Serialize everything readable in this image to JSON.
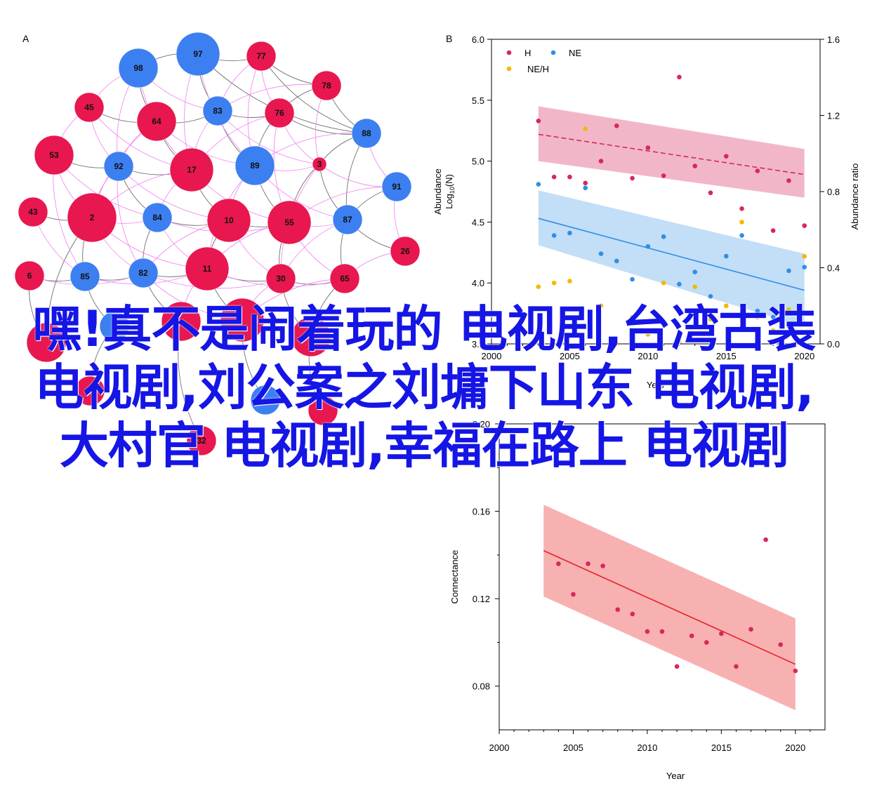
{
  "headline": "嘿!真不是闹着玩的 电视剧,台湾古装电视剧,刘公案之刘墉下山东 电视剧,大村官 电视剧,幸福在路上 电视剧",
  "colors": {
    "node_red": "#e8174f",
    "node_blue": "#3c7ff0",
    "edge_pink": "#f080f0",
    "edge_dark": "#555555",
    "series_H": "#d6285a",
    "series_NE": "#2f8fe6",
    "series_NEH": "#f5b800",
    "band_H": "#eeaac0",
    "band_NE": "#b8d8f6",
    "band_conn": "#f7a8a8",
    "line_conn": "#e8202a"
  },
  "network": {
    "panel_label": "A",
    "nodes": [
      {
        "id": "97",
        "group": "blue",
        "size": "large"
      },
      {
        "id": "98",
        "group": "blue",
        "size": "medium"
      },
      {
        "id": "77",
        "group": "red",
        "size": "small"
      },
      {
        "id": "78",
        "group": "red",
        "size": "small"
      },
      {
        "id": "45",
        "group": "red",
        "size": "small"
      },
      {
        "id": "64",
        "group": "red",
        "size": "medium"
      },
      {
        "id": "83",
        "group": "blue",
        "size": "small"
      },
      {
        "id": "76",
        "group": "red",
        "size": "small"
      },
      {
        "id": "88",
        "group": "blue",
        "size": "small"
      },
      {
        "id": "53",
        "group": "red",
        "size": "medium"
      },
      {
        "id": "92",
        "group": "blue",
        "size": "small"
      },
      {
        "id": "17",
        "group": "red",
        "size": "large"
      },
      {
        "id": "89",
        "group": "blue",
        "size": "medium"
      },
      {
        "id": "3",
        "group": "red",
        "size": "tiny"
      },
      {
        "id": "91",
        "group": "blue",
        "size": "small"
      },
      {
        "id": "43",
        "group": "red",
        "size": "small"
      },
      {
        "id": "2",
        "group": "red",
        "size": "xlarge"
      },
      {
        "id": "84",
        "group": "blue",
        "size": "small"
      },
      {
        "id": "10",
        "group": "red",
        "size": "large"
      },
      {
        "id": "55",
        "group": "red",
        "size": "large"
      },
      {
        "id": "87",
        "group": "blue",
        "size": "small"
      },
      {
        "id": "26",
        "group": "red",
        "size": "small"
      },
      {
        "id": "6",
        "group": "red",
        "size": "small"
      },
      {
        "id": "85",
        "group": "blue",
        "size": "small"
      },
      {
        "id": "82",
        "group": "blue",
        "size": "small"
      },
      {
        "id": "11",
        "group": "red",
        "size": "large"
      },
      {
        "id": "30",
        "group": "red",
        "size": "small"
      },
      {
        "id": "65",
        "group": "red",
        "size": "small"
      },
      {
        "id": "",
        "group": "red",
        "size": "medium"
      },
      {
        "id": "",
        "group": "red",
        "size": "large"
      },
      {
        "id": "",
        "group": "red",
        "size": "medium"
      },
      {
        "id": "",
        "group": "red",
        "size": "medium"
      },
      {
        "id": "",
        "group": "blue",
        "size": "small"
      },
      {
        "id": "",
        "group": "blue",
        "size": "small"
      },
      {
        "id": "32",
        "group": "red",
        "size": "small"
      },
      {
        "id": "",
        "group": "red",
        "size": "small"
      },
      {
        "id": "",
        "group": "red",
        "size": "small"
      }
    ]
  },
  "chart_data": [
    {
      "panel_label": "B",
      "type": "scatter",
      "xlabel": "Year",
      "ylabel": "Abundance",
      "ylabel_line2_prefix": "Log",
      "ylabel_line2_sub": "10",
      "ylabel_line2_suffix": "(N)",
      "y2label": "Abundance ratio",
      "xlim": [
        2000,
        2021
      ],
      "ylim": [
        3.5,
        6.0
      ],
      "y2lim": [
        0.0,
        1.6
      ],
      "xticks": [
        "2000",
        "2005",
        "2010",
        "2015",
        "2020"
      ],
      "yticks": [
        "3.5",
        "4.0",
        "4.5",
        "5.0",
        "5.5",
        "6.0"
      ],
      "y2ticks": [
        "0.0",
        "0.4",
        "0.8",
        "1.2",
        "1.6"
      ],
      "legend": {
        "position": "top-left",
        "items": [
          "H",
          "NE",
          "NE/H"
        ]
      },
      "series": [
        {
          "name": "H",
          "axis": "left",
          "x": [
            2003,
            2004,
            2005,
            2006,
            2007,
            2008,
            2009,
            2010,
            2011,
            2012,
            2013,
            2014,
            2015,
            2016,
            2017,
            2018,
            2019,
            2020
          ],
          "y": [
            5.33,
            4.87,
            4.87,
            4.82,
            5.0,
            5.29,
            4.86,
            5.11,
            4.88,
            5.69,
            4.96,
            4.74,
            5.04,
            4.61,
            4.92,
            4.43,
            4.84,
            4.47
          ],
          "fit": {
            "x": [
              2003,
              2020
            ],
            "y": [
              5.22,
              4.89
            ]
          },
          "band": {
            "x": [
              2003,
              2020
            ],
            "upper": [
              5.45,
              5.1
            ],
            "lower": [
              5.0,
              4.7
            ]
          }
        },
        {
          "name": "NE",
          "axis": "left",
          "x": [
            2003,
            2004,
            2005,
            2006,
            2007,
            2008,
            2009,
            2010,
            2011,
            2012,
            2013,
            2014,
            2015,
            2016,
            2017,
            2018,
            2019,
            2020
          ],
          "y": [
            4.81,
            4.39,
            4.41,
            4.78,
            4.24,
            4.18,
            4.03,
            4.3,
            4.38,
            3.99,
            4.09,
            3.89,
            4.22,
            4.39,
            3.77,
            3.72,
            4.1,
            4.13
          ],
          "fit": {
            "x": [
              2003,
              2020
            ],
            "y": [
              4.53,
              3.94
            ]
          },
          "band": {
            "x": [
              2003,
              2020
            ],
            "upper": [
              4.76,
              4.24
            ],
            "lower": [
              4.31,
              3.64
            ]
          }
        },
        {
          "name": "NE/H",
          "axis": "right",
          "x": [
            2003,
            2004,
            2005,
            2006,
            2007,
            2008,
            2009,
            2010,
            2011,
            2012,
            2013,
            2014,
            2015,
            2016,
            2017,
            2018,
            2019,
            2020
          ],
          "y": [
            0.3,
            0.32,
            0.33,
            1.13,
            0.2,
            0.0,
            0.14,
            0.05,
            0.32,
            0.01,
            0.3,
            0.13,
            0.2,
            0.64,
            0.14,
            0.07,
            0.18,
            0.46
          ]
        }
      ]
    },
    {
      "type": "scatter",
      "xlabel": "Year",
      "ylabel": "Connectance",
      "xlim": [
        2000,
        2022
      ],
      "ylim": [
        0.06,
        0.2
      ],
      "xticks": [
        "2000",
        "2005",
        "2010",
        "2015",
        "2020"
      ],
      "yticks": [
        "0.08",
        "0.12",
        "0.16",
        "0.20"
      ],
      "series": [
        {
          "name": "",
          "x": [
            2004,
            2005,
            2006,
            2007,
            2008,
            2009,
            2010,
            2011,
            2012,
            2013,
            2014,
            2015,
            2016,
            2017,
            2018,
            2019,
            2020
          ],
          "y": [
            0.136,
            0.122,
            0.136,
            0.135,
            0.115,
            0.113,
            0.105,
            0.105,
            0.089,
            0.103,
            0.1,
            0.104,
            0.089,
            0.106,
            0.147,
            0.099,
            0.087
          ],
          "fit": {
            "x": [
              2003,
              2020
            ],
            "y": [
              0.142,
              0.09
            ]
          },
          "band": {
            "x": [
              2003,
              2020
            ],
            "upper": [
              0.163,
              0.111
            ],
            "lower": [
              0.121,
              0.069
            ]
          }
        }
      ]
    }
  ]
}
